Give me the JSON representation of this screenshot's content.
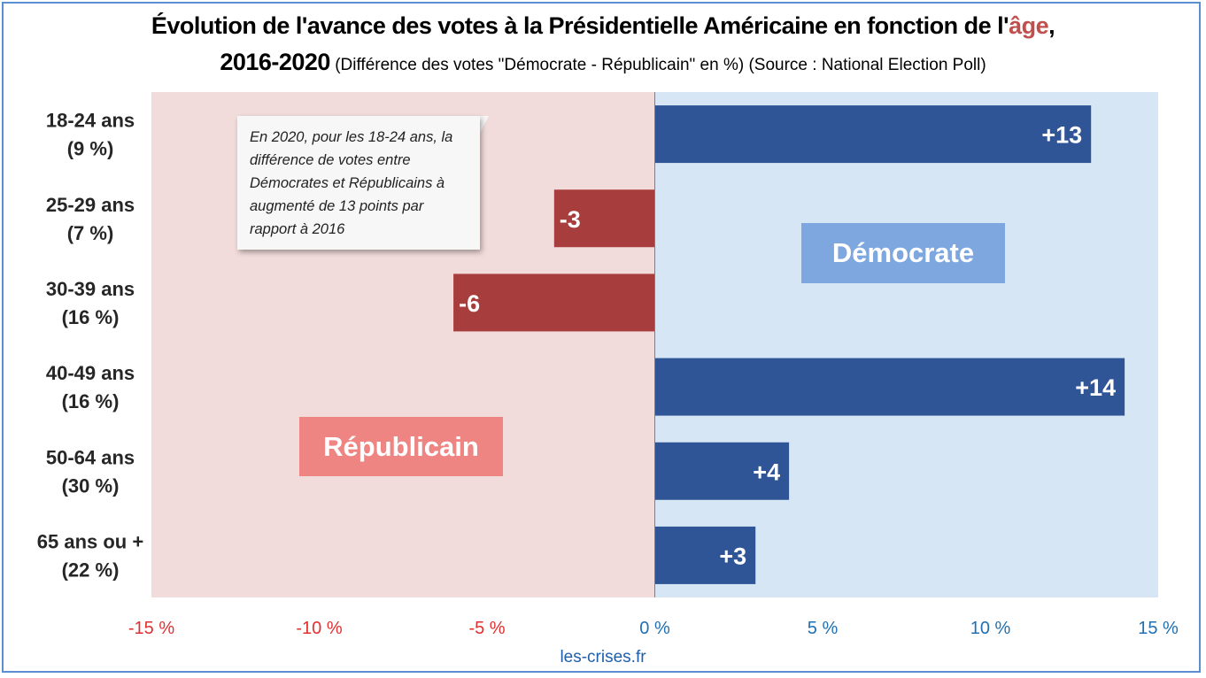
{
  "title": {
    "line1_main": "Évolution de l'avance des votes à la Présidentielle Américaine en fonction de l'",
    "line1_accent": "âge",
    "line1_end": ",",
    "line2_year": "2016-2020",
    "line2_sub": " (Différence des votes \"Démocrate - Républicain\" en %) (Source : National Election Poll)"
  },
  "annotation": "En 2020, pour les 18-24 ans, la différence de votes entre Démocrates et Républicains à augmenté de 13 points par rapport à 2016",
  "legend": {
    "democrat": "Démocrate",
    "republican": "Républicain"
  },
  "source_footer": "les-crises.fr",
  "colors": {
    "positive_bar": "#2f5597",
    "negative_bar": "#a73d3d",
    "positive_zone": "#d6e6f4",
    "negative_zone": "#f2dcdb",
    "positive_tick": "#1f6fb2",
    "negative_tick": "#e03030"
  },
  "chart_data": {
    "type": "bar",
    "orientation": "horizontal",
    "categories": [
      [
        "18-24 ans",
        "(9 %)"
      ],
      [
        "25-29 ans",
        "(7 %)"
      ],
      [
        "30-39 ans",
        "(16 %)"
      ],
      [
        "40-49 ans",
        "(16 %)"
      ],
      [
        "50-64 ans",
        "(30 %)"
      ],
      [
        "65 ans ou +",
        "(22 %)"
      ]
    ],
    "values": [
      13,
      -3,
      -6,
      14,
      4,
      3
    ],
    "data_labels": [
      "+13",
      "-3",
      "-6",
      "+14",
      "+4",
      "+3"
    ],
    "xlim": [
      -15,
      15
    ],
    "xticks": [
      -15,
      -10,
      -5,
      0,
      5,
      10,
      15
    ],
    "xtick_labels": [
      "-15 %",
      "-10 %",
      "-5 %",
      "0 %",
      "5 %",
      "10 %",
      "15 %"
    ],
    "grid": false,
    "legend": "none"
  }
}
